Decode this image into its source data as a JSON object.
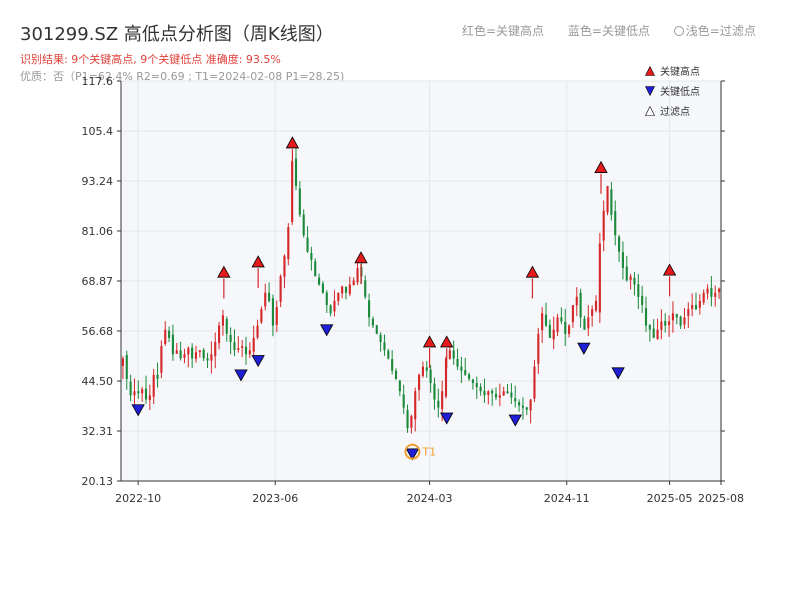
{
  "header": {
    "title": "301299.SZ 高低点分析图（周K线图）",
    "subtitle": "识别结果: 9个关键高点, 9个关键低点  准确度: 93.5%",
    "subtitle2": "优质：否（P1=62.4%  R2=0.69 ; T1=2024-02-08 P1=28.25)"
  },
  "top_legend": {
    "red_label": "红色=关键高点",
    "blue_label": "蓝色=关键低点",
    "light_label": "浅色=过滤点"
  },
  "colors": {
    "up": "#d62728",
    "down": "#1a8a3a",
    "high_marker": "#e41a1c",
    "low_marker": "#1f1fd6",
    "t1_marker": "#f0a030",
    "plot_bg": "#f5f7fa",
    "grid": "#e3e6ea"
  },
  "chart_data": {
    "type": "candlestick",
    "title": "301299.SZ 高低点分析图（周K线图）",
    "ylim": [
      20.13,
      117.6
    ],
    "y_ticks": [
      "20.13",
      "32.31",
      "44.50",
      "56.68",
      "68.87",
      "81.06",
      "93.24",
      "105.4",
      "117.6"
    ],
    "x_ticks": [
      "2022-10",
      "2023-06",
      "2024-03",
      "2024-11",
      "2025-05",
      "2025-08"
    ],
    "legend": [
      "关键高点",
      "关键低点",
      "过滤点"
    ],
    "annotation": "T1",
    "high_points": [
      {
        "label": "关键高点",
        "date": "2023-03",
        "price": 69.5
      },
      {
        "label": "关键高点",
        "date": "2023-05",
        "price": 72.0
      },
      {
        "label": "关键高点",
        "date": "2023-07",
        "price": 101.0
      },
      {
        "label": "关键高点",
        "date": "2023-11",
        "price": 73.0
      },
      {
        "label": "关键高点",
        "date": "2024-03",
        "price": 52.5
      },
      {
        "label": "关键高点",
        "date": "2024-04",
        "price": 52.5
      },
      {
        "label": "关键高点",
        "date": "2024-09",
        "price": 69.5
      },
      {
        "label": "关键高点",
        "date": "2025-01",
        "price": 95.0
      },
      {
        "label": "关键高点",
        "date": "2025-05",
        "price": 70.0
      }
    ],
    "low_points": [
      {
        "label": "关键低点",
        "date": "2022-10",
        "price": 39.0
      },
      {
        "label": "关键低点",
        "date": "2023-04",
        "price": 47.5
      },
      {
        "label": "关键低点",
        "date": "2023-05",
        "price": 51.0
      },
      {
        "label": "关键低点",
        "date": "2023-09",
        "price": 58.5
      },
      {
        "label": "关键低点",
        "date": "2024-02",
        "price": 28.25
      },
      {
        "label": "关键低点",
        "date": "2024-04",
        "price": 37.0
      },
      {
        "label": "关键低点",
        "date": "2024-08",
        "price": 36.5
      },
      {
        "label": "关键低点",
        "date": "2024-12",
        "price": 54.0
      },
      {
        "label": "关键低点",
        "date": "2025-02",
        "price": 48.0
      }
    ],
    "series": [
      {
        "values": [
          50.0,
          45.0,
          41.0,
          42.0,
          41.5,
          42.5,
          40.0,
          41.0,
          46.0,
          45.0,
          53.0,
          57.0,
          55.0,
          51.0,
          52.0,
          50.0,
          51.0,
          52.5,
          50.0,
          51.5,
          52.0,
          50.0,
          49.5,
          51.0,
          54.0,
          58.0,
          60.5,
          56.0,
          54.0,
          52.0,
          52.5,
          53.0,
          51.0,
          52.0,
          55.0,
          58.0,
          62.0,
          66.0,
          64.0,
          58.0,
          62.5,
          70.0,
          75.0,
          82.0,
          98.0,
          92.0,
          85.0,
          80.0,
          76.0,
          74.0,
          70.0,
          68.0,
          66.0,
          63.0,
          61.0,
          64.0,
          66.0,
          67.5,
          66.0,
          68.0,
          69.0,
          72.0,
          70.0,
          65.0,
          60.0,
          58.0,
          56.0,
          54.0,
          52.0,
          50.0,
          47.0,
          45.0,
          42.0,
          38.0,
          33.0,
          36.0,
          42.0,
          46.0,
          48.0,
          47.0,
          44.0,
          40.0,
          38.0,
          42.0,
          50.0,
          52.0,
          50.0,
          48.0,
          47.0,
          46.0,
          45.0,
          44.0,
          43.0,
          42.0,
          41.0,
          42.0,
          41.5,
          40.5,
          41.0,
          42.0,
          41.5,
          40.5,
          39.5,
          38.5,
          38.0,
          37.5,
          40.0,
          48.0,
          56.0,
          61.0,
          58.0,
          55.0,
          57.0,
          60.0,
          59.0,
          56.0,
          58.0,
          63.0,
          65.0,
          60.0,
          57.0,
          60.0,
          62.0,
          64.0,
          78.0,
          86.0,
          92.0,
          85.0,
          80.0,
          76.0,
          72.0,
          69.0,
          70.0,
          68.0,
          65.0,
          63.0,
          58.0,
          57.0,
          55.0,
          57.0,
          59.0,
          58.0,
          59.0,
          61.0,
          60.0,
          58.0,
          60.0,
          62.0,
          63.0,
          62.0,
          64.0,
          66.0,
          67.0,
          65.0,
          66.0,
          67.0
        ]
      }
    ]
  }
}
